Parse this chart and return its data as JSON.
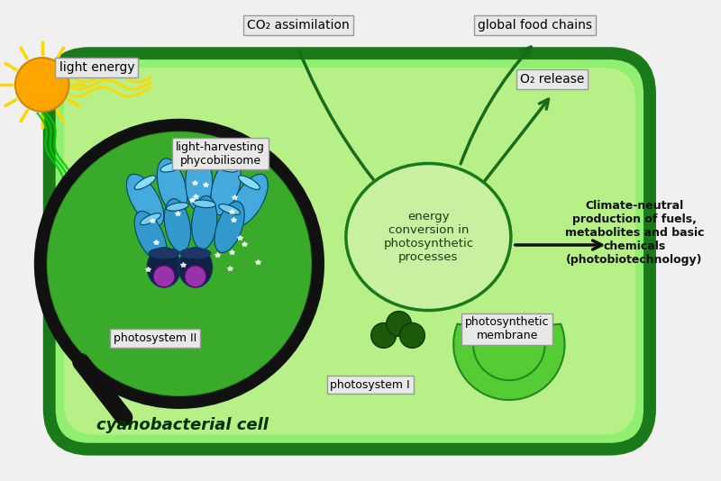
{
  "bg_color": "#f0f0f0",
  "cell_outer_color": "#1a7a1a",
  "cell_inner_color": "#90ee70",
  "sun_color": "#FFA500",
  "arrow_color": "#1a6a1a",
  "energy_circle_color": "#c8f0a0",
  "energy_circle_edge": "#1a7a1a",
  "magnifier_color": "#111111",
  "wavy_color_yellow": "#FFD700",
  "wavy_color_green": "#00cc00",
  "labels": {
    "light_energy": "light energy",
    "co2": "CO₂ assimilation",
    "food_chains": "global food chains",
    "o2_release": "O₂ release",
    "energy_conversion": "energy\nconversion in\nphotosynthetic\nprocesses",
    "climate_neutral": "Climate-neutral\nproduction of fuels,\nmetabolites and basic\nchemicals\n(photobiotechnology)",
    "light_harvesting": "light-harvesting\nphycobilisome",
    "photosystem2": "photosystem II",
    "photosystem1": "photosystem I",
    "photosynthetic_membrane": "photosynthetic\nmembrane",
    "cyanobacterial_cell": "cyanobacterial cell"
  }
}
